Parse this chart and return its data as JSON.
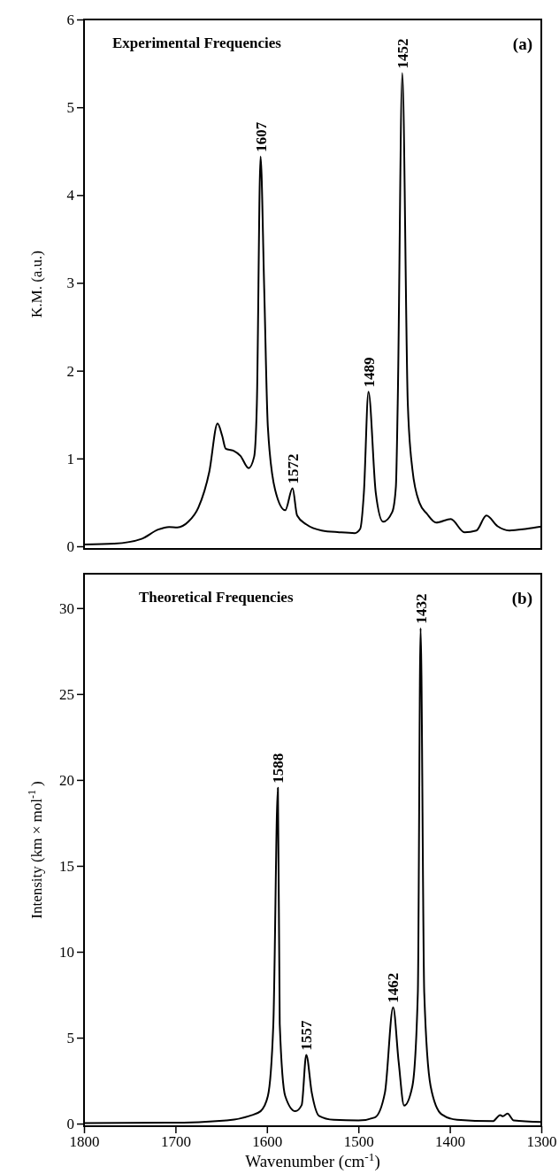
{
  "chart_data": [
    {
      "type": "line",
      "title": "Experimental Frequencies",
      "ylabel": "K.M. (a.u.)",
      "tick_labels": "y",
      "xlim": [
        1800,
        1300
      ],
      "ylim": [
        -0.03,
        6
      ],
      "yticks": [
        0,
        1,
        2,
        3,
        4,
        5,
        6
      ],
      "x": [
        1800,
        1767,
        1737,
        1719,
        1707,
        1698,
        1686,
        1675,
        1663,
        1654,
        1649,
        1645,
        1637,
        1629,
        1620,
        1614,
        1611,
        1607,
        1603,
        1599,
        1591,
        1580,
        1572,
        1567,
        1557,
        1540,
        1521,
        1504,
        1498,
        1494,
        1489,
        1481,
        1473,
        1463,
        1459,
        1457,
        1452,
        1446,
        1441,
        1433,
        1425,
        1415,
        1399,
        1384,
        1371,
        1360,
        1348,
        1335,
        1316,
        1300
      ],
      "series": [
        {
          "color": "#000000",
          "values": [
            0.02,
            0.03,
            0.085,
            0.19,
            0.22,
            0.215,
            0.28,
            0.44,
            0.85,
            1.4,
            1.26,
            1.11,
            1.09,
            1.03,
            0.89,
            1.02,
            1.63,
            4.44,
            2.94,
            1.36,
            0.64,
            0.41,
            0.66,
            0.35,
            0.25,
            0.18,
            0.16,
            0.15,
            0.2,
            0.61,
            1.76,
            0.61,
            0.28,
            0.39,
            0.68,
            1.63,
            5.39,
            1.63,
            0.88,
            0.49,
            0.37,
            0.27,
            0.31,
            0.16,
            0.18,
            0.35,
            0.23,
            0.18,
            0.2,
            0.225
          ]
        }
      ],
      "annotations": [
        "(a)",
        {
          "text": "1607",
          "x": 1607,
          "y": 4.44
        },
        {
          "text": "1572",
          "x": 1572,
          "y": 0.66
        },
        {
          "text": "1489",
          "x": 1489,
          "y": 1.76
        },
        {
          "text": "1452",
          "x": 1452,
          "y": 5.39
        }
      ]
    },
    {
      "type": "line",
      "title": "Theoretical Frequencies",
      "xlabel": "Wavenumber (cm$^{-1}$)",
      "ylabel": "Intensity (km × mol$^{-1}$ )",
      "xlim": [
        1800,
        1300
      ],
      "ylim": [
        -0.15,
        32
      ],
      "xticks": [
        1800,
        1700,
        1600,
        1500,
        1400,
        1300
      ],
      "yticks": [
        0,
        5,
        10,
        15,
        20,
        25,
        30
      ],
      "x": [
        1800,
        1708,
        1642,
        1619,
        1607,
        1599,
        1593,
        1588,
        1586,
        1580,
        1569,
        1562,
        1557,
        1551,
        1543,
        1527,
        1500,
        1482,
        1471,
        1462,
        1456,
        1450,
        1441,
        1435,
        1432,
        1428,
        1421,
        1409,
        1392,
        1353,
        1345,
        1342,
        1337,
        1330,
        1300
      ],
      "series": [
        {
          "color": "#000000",
          "values": [
            0.03,
            0.05,
            0.2,
            0.45,
            0.72,
            1.6,
            5.8,
            19.55,
            5.8,
            1.6,
            0.72,
            1.08,
            4.0,
            1.8,
            0.45,
            0.22,
            0.18,
            0.36,
            1.8,
            6.77,
            3.6,
            1.05,
            2.17,
            7.6,
            28.83,
            7.6,
            2.17,
            0.54,
            0.22,
            0.14,
            0.5,
            0.43,
            0.58,
            0.18,
            0.09
          ]
        }
      ],
      "annotations": [
        "(b)",
        {
          "text": "1588",
          "x": 1588,
          "y": 19.55
        },
        {
          "text": "1557",
          "x": 1557,
          "y": 4.0
        },
        {
          "text": "1462",
          "x": 1462,
          "y": 6.77
        },
        {
          "text": "1432",
          "x": 1432,
          "y": 28.83
        }
      ]
    }
  ]
}
